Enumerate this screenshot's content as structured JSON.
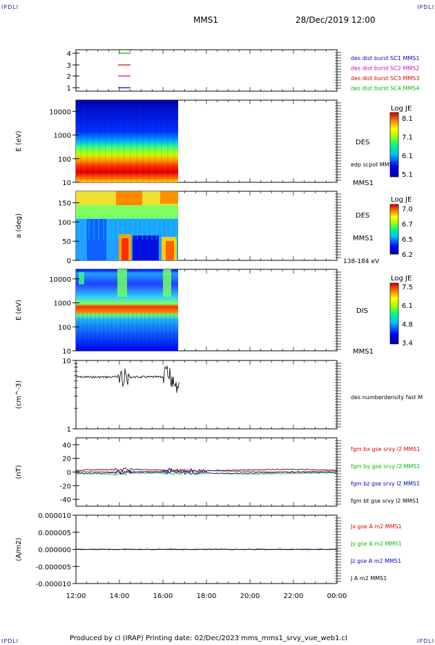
{
  "corners": {
    "tl": "IPDLI",
    "tr": "IPDLI",
    "bl": "IPDLI",
    "br": "IPDLI"
  },
  "header": {
    "spacecraft": "MMS1",
    "datetime": "28/Dec/2019 12:00"
  },
  "footer": {
    "text": "Produced by cl (IRAP)   Printing date: 02/Dec/2023   mms_mms1_srvy_vue_web1.cl"
  },
  "colors": {
    "red": "#dd0000",
    "green": "#00bb00",
    "blue": "#0000cc",
    "magenta": "#cc00cc",
    "black": "#000000"
  },
  "chart_data": [
    {
      "id": "availability",
      "type": "line",
      "y_ticks": [
        "4",
        "3",
        "2",
        "1"
      ],
      "series": [
        {
          "name": "des dist burst SC1 MMS1",
          "color": "#0000cc",
          "level": 1
        },
        {
          "name": "des dist burst SC2 MMS2",
          "color": "#cc00cc",
          "level": 2
        },
        {
          "name": "des dist burst SC3 MMS3",
          "color": "#dd0000",
          "level": 3
        },
        {
          "name": "des dist burst SC4 MMS4",
          "color": "#00bb00",
          "level": 4
        }
      ]
    },
    {
      "id": "des-energy",
      "type": "heatmap",
      "ylabel": "E (eV)",
      "y_ticks": [
        "10000",
        "1000",
        "100",
        "10"
      ],
      "colorbar": {
        "title": "Log JE",
        "ticks": [
          "8.1",
          "7.1",
          "6.1",
          "5.1"
        ]
      },
      "labels": [
        "DES",
        "edp scpot MMS1",
        "MMS1"
      ]
    },
    {
      "id": "des-pitch",
      "type": "heatmap",
      "ylabel": "a (deg)",
      "y_ticks": [
        "150",
        "100",
        "50",
        "0"
      ],
      "colorbar": {
        "title": "Log JE",
        "ticks": [
          "7.0",
          "6.7",
          "6.5",
          "6.2"
        ]
      },
      "labels": [
        "DES",
        "MMS1",
        "138-184 eV"
      ]
    },
    {
      "id": "dis-energy",
      "type": "heatmap",
      "ylabel": "E (eV)",
      "y_ticks": [
        "10000",
        "1000",
        "100",
        "10"
      ],
      "colorbar": {
        "title": "Log JE",
        "ticks": [
          "7.5",
          "6.1",
          "4.8",
          "3.4"
        ]
      },
      "labels": [
        "DIS",
        "MMS1"
      ]
    },
    {
      "id": "density",
      "type": "line",
      "ylabel": "(cm^-3)",
      "y_ticks": [
        "10",
        "1"
      ],
      "series": [
        {
          "name": "des numberdensity fast M",
          "color": "#000000"
        }
      ]
    },
    {
      "id": "bfield",
      "type": "line",
      "ylabel": "(nT)",
      "y_ticks": [
        "40",
        "20",
        "0",
        "-20",
        "-40"
      ],
      "series": [
        {
          "name": "fgm bx gse srvy l2 MMS1",
          "color": "#dd0000",
          "offset": 1
        },
        {
          "name": "fgm by gse srvy l2 MMS1",
          "color": "#00bb00",
          "offset": -2
        },
        {
          "name": "fgm bz gse srvy l2 MMS1",
          "color": "#0000cc",
          "offset": -1
        },
        {
          "name": "fgm bt gse srvy l2 MMS1",
          "color": "#000000",
          "offset": 3
        }
      ]
    },
    {
      "id": "current",
      "type": "line",
      "ylabel": "(A/m2)",
      "y_ticks": [
        "0.000010",
        "0.000005",
        "0.000000",
        "-0.000005",
        "-0.000010"
      ],
      "series": [
        {
          "name": "Jx gse A m2 MMS1",
          "color": "#dd0000"
        },
        {
          "name": "Jy gse A m2 MMS1",
          "color": "#00bb00"
        },
        {
          "name": "Jz gse A m2 MMS1",
          "color": "#0000cc"
        },
        {
          "name": "J A m2 MMS1",
          "color": "#000000"
        }
      ]
    }
  ],
  "x_axis": {
    "ticks": [
      "12:00",
      "14:00",
      "16:00",
      "18:00",
      "20:00",
      "22:00",
      "00:00"
    ]
  }
}
